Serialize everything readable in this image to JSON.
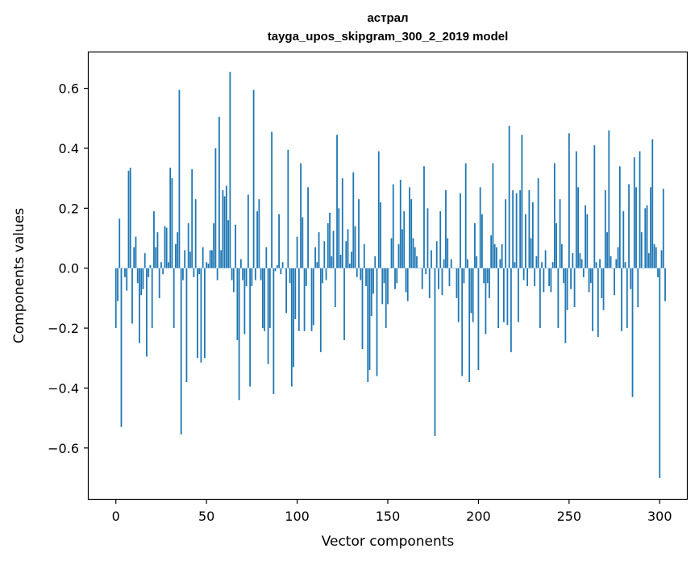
{
  "chart_data": {
    "type": "bar",
    "title": "астрал",
    "subtitle": "tayga_upos_skipgram_300_2_2019 model",
    "xlabel": "Vector components",
    "ylabel": "Components values",
    "xlim": [
      -15,
      315
    ],
    "ylim": [
      -0.77,
      0.72
    ],
    "xticks": [
      0,
      50,
      100,
      150,
      200,
      250,
      300
    ],
    "xtick_labels": [
      "0",
      "50",
      "100",
      "150",
      "200",
      "250",
      "300"
    ],
    "yticks": [
      -0.6,
      -0.4,
      -0.2,
      0.0,
      0.2,
      0.4,
      0.6
    ],
    "ytick_labels": [
      "−0.6",
      "−0.4",
      "−0.2",
      "0.0",
      "0.2",
      "0.4",
      "0.6"
    ],
    "grid": false,
    "bar_color": "#1f77b4",
    "series": [
      {
        "values": [
          -0.2,
          -0.11,
          0.165,
          -0.53,
          0.0,
          -0.03,
          -0.075,
          0.325,
          0.335,
          -0.185,
          0.07,
          0.105,
          -0.05,
          -0.25,
          -0.09,
          -0.07,
          0.05,
          -0.295,
          -0.03,
          0.01,
          -0.2,
          0.19,
          0.07,
          0.12,
          -0.1,
          0.02,
          -0.02,
          0.14,
          0.135,
          0.02,
          0.335,
          0.3,
          -0.2,
          0.08,
          0.12,
          0.595,
          -0.555,
          -0.04,
          0.06,
          -0.38,
          0.15,
          0.055,
          0.33,
          -0.03,
          0.23,
          -0.3,
          -0.02,
          -0.315,
          0.07,
          -0.3,
          0.02,
          0.015,
          0.06,
          0.06,
          0.15,
          0.4,
          -0.04,
          0.505,
          0.06,
          0.26,
          0.24,
          0.275,
          0.16,
          0.655,
          -0.04,
          -0.08,
          0.145,
          -0.24,
          -0.44,
          0.03,
          -0.04,
          -0.22,
          -0.06,
          0.245,
          -0.395,
          -0.06,
          0.595,
          -0.04,
          0.19,
          0.23,
          -0.04,
          -0.2,
          -0.21,
          0.07,
          -0.32,
          -0.2,
          0.455,
          -0.42,
          -0.01,
          0.01,
          0.18,
          -0.02,
          0.02,
          0.0,
          -0.15,
          0.395,
          -0.05,
          -0.395,
          -0.33,
          -0.17,
          0.105,
          -0.21,
          0.35,
          0.17,
          -0.21,
          -0.06,
          0.27,
          0.0,
          -0.21,
          -0.19,
          0.07,
          0.02,
          0.12,
          -0.28,
          -0.05,
          0.09,
          -0.04,
          0.15,
          0.185,
          0.04,
          0.125,
          -0.13,
          0.445,
          0.2,
          0.045,
          0.3,
          -0.24,
          0.09,
          0.13,
          0.015,
          0.055,
          0.32,
          0.14,
          -0.03,
          0.23,
          -0.04,
          -0.27,
          0.08,
          -0.06,
          -0.38,
          -0.34,
          -0.16,
          -0.085,
          0.04,
          -0.36,
          0.39,
          0.22,
          -0.12,
          -0.05,
          -0.2,
          -0.12,
          0.0,
          0.1,
          0.28,
          -0.07,
          -0.05,
          0.08,
          0.295,
          0.13,
          0.19,
          -0.08,
          -0.11,
          0.27,
          0.23,
          0.1,
          0.07,
          0.04,
          0.0,
          0.0,
          -0.07,
          0.34,
          -0.02,
          0.2,
          -0.1,
          0.06,
          0.0,
          -0.56,
          0.09,
          -0.07,
          0.19,
          -0.09,
          0.03,
          0.26,
          0.1,
          -0.06,
          0.03,
          0.0,
          0.0,
          -0.1,
          -0.18,
          0.25,
          -0.36,
          -0.05,
          0.35,
          0.03,
          -0.38,
          -0.15,
          -0.18,
          0.15,
          0.04,
          -0.34,
          0.27,
          0.18,
          -0.05,
          -0.22,
          -0.05,
          -0.1,
          0.11,
          0.35,
          0.08,
          0.07,
          -0.2,
          0.03,
          0.08,
          -0.18,
          0.23,
          -0.19,
          0.475,
          -0.28,
          0.26,
          0.02,
          0.25,
          -0.18,
          0.26,
          0.445,
          -0.04,
          0.18,
          -0.06,
          0.26,
          0.1,
          0.22,
          -0.06,
          0.04,
          0.3,
          -0.2,
          0.02,
          -0.08,
          0.06,
          0.0,
          -0.06,
          -0.08,
          0.02,
          0.35,
          0.15,
          -0.2,
          0.23,
          0.08,
          -0.05,
          -0.25,
          -0.14,
          0.45,
          -0.07,
          0.05,
          -0.13,
          0.39,
          0.27,
          0.05,
          0.03,
          -0.03,
          0.21,
          0.18,
          -0.08,
          -0.05,
          -0.21,
          0.41,
          0.02,
          -0.23,
          0.03,
          -0.1,
          -0.14,
          0.26,
          0.12,
          0.46,
          0.04,
          0.0,
          -0.09,
          0.03,
          0.07,
          0.34,
          -0.21,
          0.19,
          0.02,
          -0.2,
          0.28,
          -0.07,
          -0.43,
          0.37,
          0.27,
          -0.13,
          0.39,
          0.12,
          0.0,
          0.2,
          0.21,
          0.05,
          0.27,
          0.43,
          0.08,
          0.07,
          -0.03,
          -0.7,
          0.06,
          0.265,
          -0.11
        ]
      }
    ]
  }
}
